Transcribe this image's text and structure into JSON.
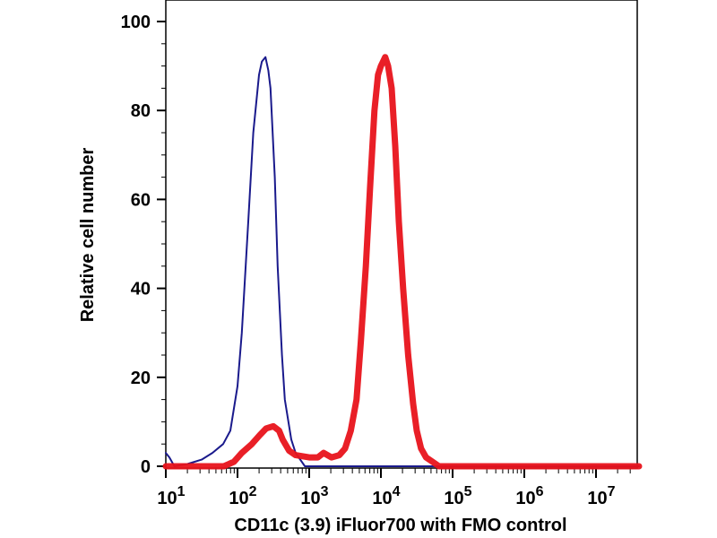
{
  "chart_data": {
    "type": "line",
    "title": "",
    "xlabel": "CD11c (3.9) iFluor700 with FMO control",
    "ylabel": "Relative cell number",
    "xscale": "log",
    "xlim_log10": [
      1,
      7.6
    ],
    "ylim": [
      0,
      105
    ],
    "yticks": [
      "0",
      "20",
      "40",
      "60",
      "80",
      "100"
    ],
    "ytick_values": [
      0,
      20,
      40,
      60,
      80,
      100
    ],
    "xticks": [
      {
        "base": "10",
        "exp": "1",
        "value_log10": 1
      },
      {
        "base": "10",
        "exp": "2",
        "value_log10": 2
      },
      {
        "base": "10",
        "exp": "3",
        "value_log10": 3
      },
      {
        "base": "10",
        "exp": "4",
        "value_log10": 4
      },
      {
        "base": "10",
        "exp": "5",
        "value_log10": 5
      },
      {
        "base": "10",
        "exp": "6",
        "value_log10": 6
      },
      {
        "base": "10",
        "exp": "7",
        "value_log10": 7
      }
    ],
    "series": [
      {
        "name": "FMO control",
        "color": "#1a1a8c",
        "log10_x": [
          1.0,
          1.05,
          1.12,
          1.3,
          1.5,
          1.65,
          1.8,
          1.9,
          2.0,
          2.06,
          2.15,
          2.22,
          2.3,
          2.34,
          2.39,
          2.43,
          2.46,
          2.52,
          2.56,
          2.62,
          2.66,
          2.75,
          2.81,
          2.94,
          7.6
        ],
        "y": [
          3,
          2,
          0,
          0.5,
          1.5,
          3,
          5,
          8,
          18,
          30,
          55,
          75,
          88,
          91,
          92,
          89,
          85,
          65,
          45,
          25,
          15,
          6,
          3,
          0,
          0
        ]
      },
      {
        "name": "CD11c iFluor700",
        "color": "#e8131b",
        "log10_x": [
          1.0,
          1.81,
          1.95,
          2.06,
          2.2,
          2.31,
          2.4,
          2.5,
          2.58,
          2.63,
          2.72,
          2.81,
          3.0,
          3.12,
          3.2,
          3.31,
          3.42,
          3.5,
          3.58,
          3.66,
          3.72,
          3.79,
          3.85,
          3.91,
          3.96,
          4.0,
          4.06,
          4.1,
          4.15,
          4.2,
          4.25,
          4.31,
          4.38,
          4.45,
          4.5,
          4.56,
          4.63,
          4.72,
          4.81,
          7.6
        ],
        "y": [
          0,
          0,
          1,
          3,
          5,
          7,
          8.5,
          9,
          8,
          6,
          3.5,
          2.5,
          2,
          2,
          3,
          2,
          2.5,
          4,
          8,
          15,
          28,
          45,
          63,
          80,
          88,
          90,
          92,
          90,
          85,
          72,
          55,
          40,
          25,
          14,
          8,
          4,
          2,
          1,
          0,
          0
        ]
      }
    ],
    "grid": false,
    "legend": "none"
  }
}
